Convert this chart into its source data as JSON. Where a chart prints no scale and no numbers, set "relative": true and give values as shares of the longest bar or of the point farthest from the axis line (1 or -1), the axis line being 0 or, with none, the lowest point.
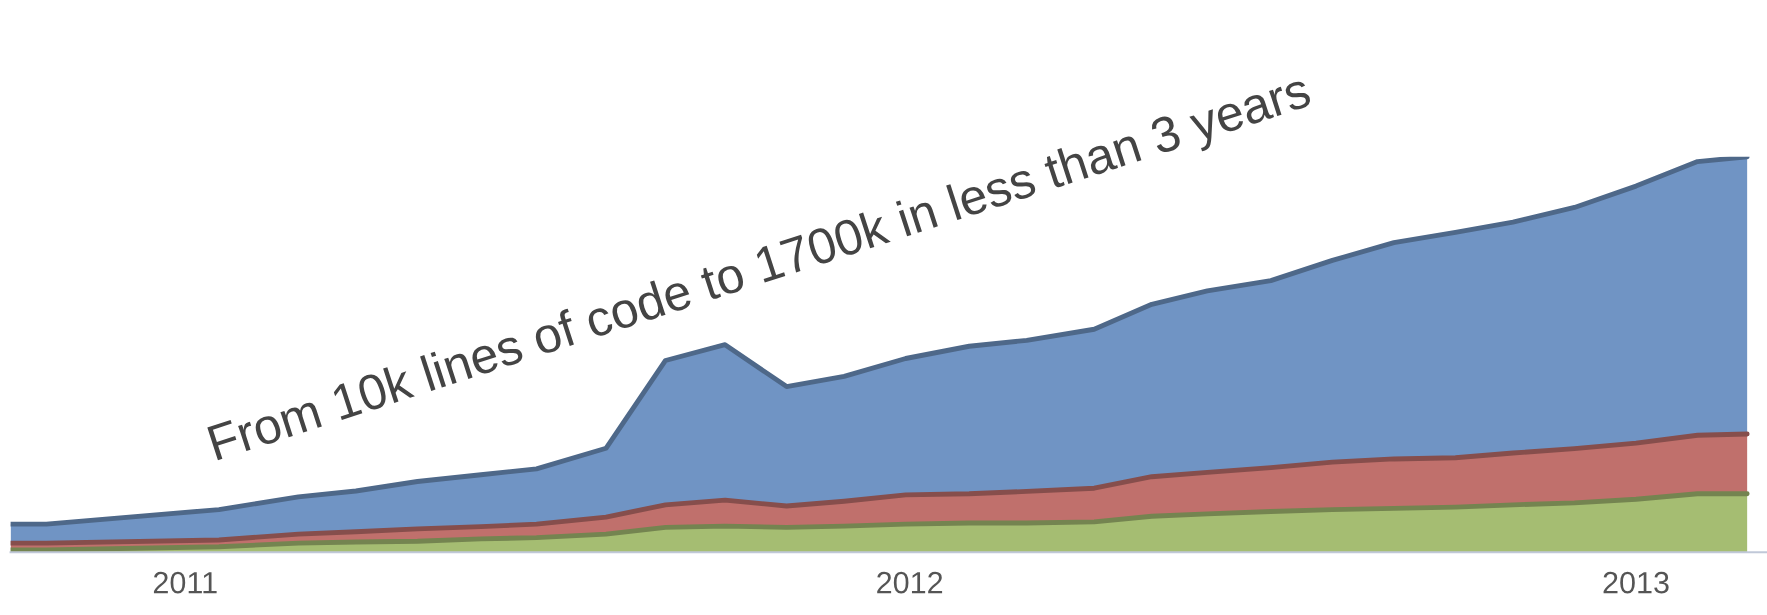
{
  "chart_data": {
    "type": "area",
    "stacked": true,
    "relative": true,
    "legend": false,
    "grid": false,
    "annotations": [
      "From 10k lines of code to 1700k in less than 3 years"
    ],
    "x": [
      "2010-10-05",
      "2010-10-23",
      "2011-01-18",
      "2011-02-27",
      "2011-03-28",
      "2011-04-28",
      "2011-05-30",
      "2011-06-27",
      "2011-08-01",
      "2011-08-31",
      "2011-09-30",
      "2011-10-31",
      "2011-11-29",
      "2011-12-30",
      "2012-01-31",
      "2012-02-29",
      "2012-04-03",
      "2012-05-02",
      "2012-05-30",
      "2012-07-01",
      "2012-08-01",
      "2012-09-01",
      "2012-10-02",
      "2012-10-31",
      "2012-12-01",
      "2013-01-01",
      "2013-02-01",
      "2013-02-26"
    ],
    "xlim": [
      "2010-10-05",
      "2013-03-08"
    ],
    "xticks": [
      {
        "value": "2011-01-01",
        "label": "2011"
      },
      {
        "value": "2012-01-01",
        "label": "2012"
      },
      {
        "value": "2013-01-01",
        "label": "2013"
      }
    ],
    "series": [
      {
        "color": "#a5bd72",
        "values": [
          0.006,
          0.006,
          0.014,
          0.023,
          0.026,
          0.028,
          0.034,
          0.037,
          0.046,
          0.063,
          0.066,
          0.063,
          0.066,
          0.071,
          0.074,
          0.074,
          0.077,
          0.091,
          0.097,
          0.103,
          0.108,
          0.111,
          0.114,
          0.12,
          0.125,
          0.134,
          0.148,
          0.148
        ]
      },
      {
        "color": "#c0706c",
        "values": [
          0.017,
          0.017,
          0.017,
          0.023,
          0.026,
          0.031,
          0.031,
          0.034,
          0.043,
          0.057,
          0.066,
          0.054,
          0.063,
          0.074,
          0.074,
          0.08,
          0.085,
          0.1,
          0.105,
          0.111,
          0.12,
          0.125,
          0.125,
          0.131,
          0.137,
          0.142,
          0.148,
          0.151
        ]
      },
      {
        "color": "#7094c4",
        "values": [
          0.048,
          0.048,
          0.077,
          0.094,
          0.103,
          0.12,
          0.131,
          0.14,
          0.174,
          0.365,
          0.393,
          0.302,
          0.316,
          0.345,
          0.373,
          0.382,
          0.402,
          0.436,
          0.459,
          0.473,
          0.51,
          0.547,
          0.57,
          0.584,
          0.61,
          0.65,
          0.692,
          0.701
        ]
      }
    ]
  }
}
